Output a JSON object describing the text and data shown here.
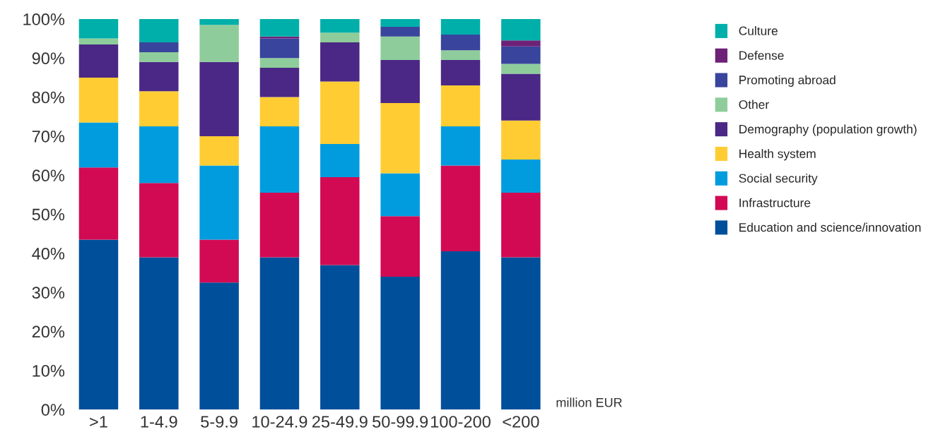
{
  "chart_data": {
    "type": "bar",
    "stacked": true,
    "xlabel": "million EUR",
    "categories": [
      ">1",
      "1-4.9",
      "5-9.9",
      "10-24.9",
      "25-49.9",
      "50-99.9",
      "100-200",
      "<200"
    ],
    "series": [
      {
        "name": "Education and science/innovation",
        "color": "#004f9a",
        "values": [
          43.5,
          39,
          32.5,
          39,
          37,
          34,
          40.5,
          39
        ]
      },
      {
        "name": "Infrastructure",
        "color": "#d20a53",
        "values": [
          18.5,
          19,
          11,
          16.5,
          22.5,
          15.5,
          22,
          16.5
        ]
      },
      {
        "name": "Social security",
        "color": "#009cde",
        "values": [
          11.5,
          14.5,
          19,
          17,
          8.5,
          11,
          10,
          8.5
        ]
      },
      {
        "name": "Health system",
        "color": "#ffcd33",
        "values": [
          11.5,
          9,
          7.5,
          7.5,
          16,
          18,
          10.5,
          10
        ]
      },
      {
        "name": "Demography (population growth)",
        "color": "#4b2885",
        "values": [
          8.5,
          7.5,
          19,
          7.5,
          10,
          11,
          6.5,
          12
        ]
      },
      {
        "name": "Other",
        "color": "#8ecd9b",
        "values": [
          1.5,
          2.5,
          9.5,
          2.5,
          2.5,
          6,
          2.5,
          2.5
        ]
      },
      {
        "name": "Promoting abroad",
        "color": "#39449c",
        "values": [
          null,
          2.5,
          null,
          5,
          null,
          2.5,
          4,
          4.5
        ]
      },
      {
        "name": "Defense",
        "color": "#6d2177",
        "values": [
          null,
          null,
          null,
          0.5,
          null,
          null,
          null,
          1.5
        ]
      },
      {
        "name": "Culture",
        "color": "#00afa9",
        "values": [
          5,
          6,
          1.5,
          4.5,
          3.5,
          2,
          4,
          5.5
        ]
      }
    ],
    "ylim": [
      0,
      100
    ],
    "yticks": [
      {
        "value": 0,
        "label": "0%"
      },
      {
        "value": 10,
        "label": "10%"
      },
      {
        "value": 20,
        "label": "20%"
      },
      {
        "value": 30,
        "label": "30%"
      },
      {
        "value": 40,
        "label": "40%"
      },
      {
        "value": 50,
        "label": "50%"
      },
      {
        "value": 60,
        "label": "60%"
      },
      {
        "value": 70,
        "label": "70%"
      },
      {
        "value": 80,
        "label": "80%"
      },
      {
        "value": 90,
        "label": "90%"
      },
      {
        "value": 100,
        "label": "100%"
      }
    ],
    "grid": false,
    "legend": "top right"
  }
}
